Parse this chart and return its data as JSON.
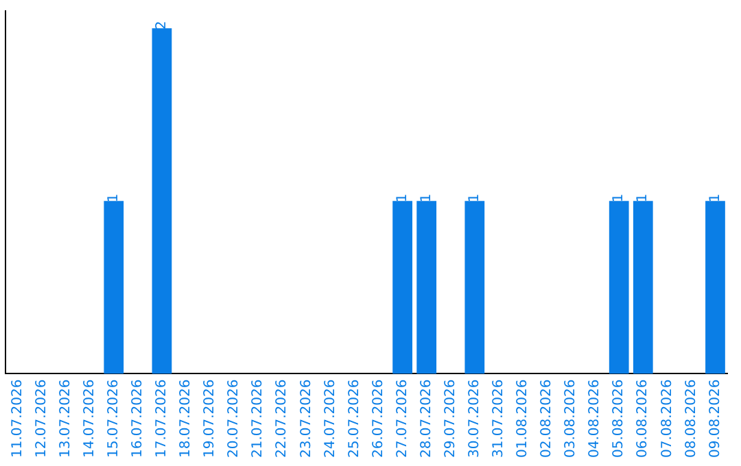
{
  "chart_data": {
    "type": "bar",
    "categories": [
      "11.07.2026",
      "12.07.2026",
      "13.07.2026",
      "14.07.2026",
      "15.07.2026",
      "16.07.2026",
      "17.07.2026",
      "18.07.2026",
      "19.07.2026",
      "20.07.2026",
      "21.07.2026",
      "22.07.2026",
      "23.07.2026",
      "24.07.2026",
      "25.07.2026",
      "26.07.2026",
      "27.07.2026",
      "28.07.2026",
      "29.07.2026",
      "30.07.2026",
      "31.07.2026",
      "01.08.2026",
      "02.08.2026",
      "03.08.2026",
      "04.08.2026",
      "05.08.2026",
      "06.08.2026",
      "07.08.2026",
      "08.08.2026",
      "09.08.2026"
    ],
    "values": [
      0,
      0,
      0,
      0,
      1,
      0,
      2,
      0,
      0,
      0,
      0,
      0,
      0,
      0,
      0,
      0,
      1,
      1,
      0,
      1,
      0,
      0,
      0,
      0,
      0,
      1,
      1,
      0,
      0,
      1
    ],
    "value_labels": [
      null,
      null,
      null,
      null,
      "1",
      null,
      "2",
      null,
      null,
      null,
      null,
      null,
      null,
      null,
      null,
      null,
      "1",
      "1",
      null,
      "1",
      null,
      null,
      null,
      null,
      null,
      "1",
      "1",
      null,
      null,
      "1"
    ],
    "color": "#0a7ee6",
    "ylim": [
      0,
      2.1
    ],
    "tick_labels": "x",
    "grid": false,
    "legend": false
  }
}
